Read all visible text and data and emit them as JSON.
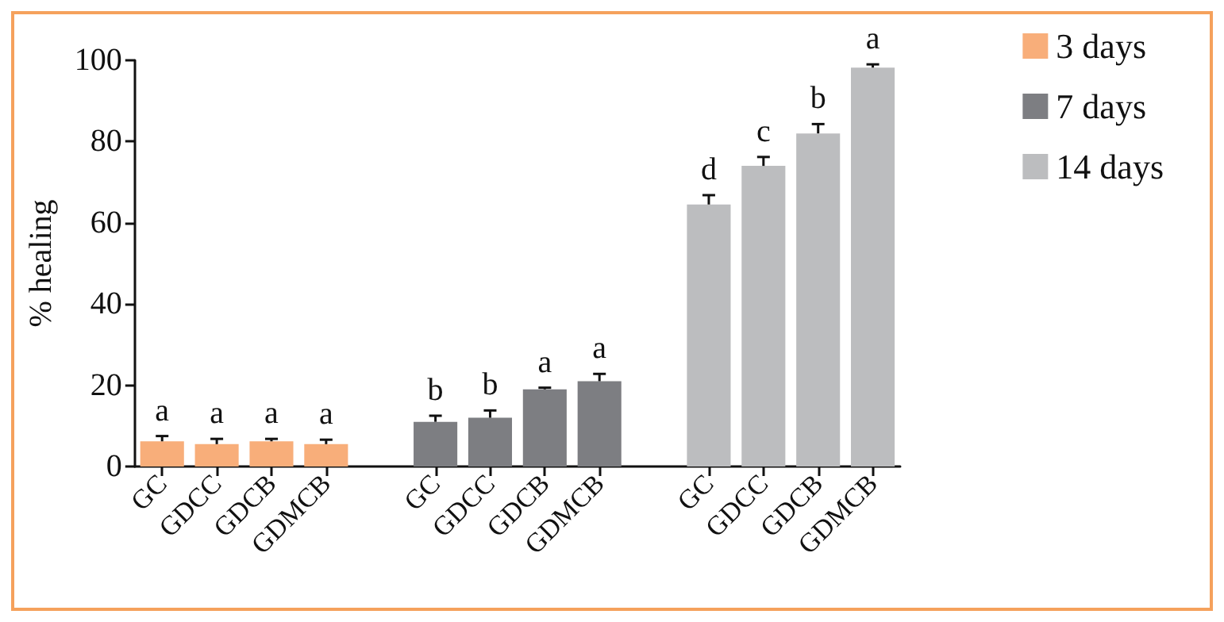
{
  "chart_data": {
    "type": "bar",
    "ylabel": "% healing",
    "categories": [
      "GC",
      "GDCC",
      "GDCB",
      "GDMCB",
      null,
      "GC",
      "GDCC",
      "GDCB",
      "GDMCB",
      null,
      "GC",
      "GDCC",
      "GDCB",
      "GDMCB"
    ],
    "series": [
      {
        "name": "3 days",
        "color": "#f8ae7a",
        "values": [
          6.2,
          5.5,
          6.2,
          5.5,
          null,
          null,
          null,
          null,
          null,
          null,
          null,
          null,
          null,
          null
        ],
        "errors": [
          [
            6.2,
            7.5
          ],
          [
            5.5,
            6.8
          ],
          [
            6.2,
            6.8
          ],
          [
            5.5,
            6.6
          ],
          null,
          null,
          null,
          null,
          null,
          null,
          null,
          null,
          null,
          null
        ],
        "value_labels": [
          "a",
          "a",
          "a",
          "a",
          null,
          null,
          null,
          null,
          null,
          null,
          null,
          null,
          null,
          null
        ]
      },
      {
        "name": "7 days",
        "color": "#7d7e82",
        "values": [
          null,
          null,
          null,
          null,
          null,
          11,
          12,
          19,
          21,
          null,
          null,
          null,
          null,
          null
        ],
        "errors": [
          null,
          null,
          null,
          null,
          null,
          [
            11,
            12.5
          ],
          [
            12,
            13.8
          ],
          [
            19,
            19.4
          ],
          [
            21,
            22.8
          ],
          null,
          null,
          null,
          null,
          null
        ],
        "value_labels": [
          null,
          null,
          null,
          null,
          null,
          "b",
          "b",
          "a",
          "a",
          null,
          null,
          null,
          null,
          null
        ]
      },
      {
        "name": "14 days",
        "color": "#bcbdbf",
        "values": [
          null,
          null,
          null,
          null,
          null,
          null,
          null,
          null,
          null,
          null,
          64.5,
          74,
          82,
          98.2
        ],
        "errors": [
          null,
          null,
          null,
          null,
          null,
          null,
          null,
          null,
          null,
          null,
          [
            64.5,
            66.8
          ],
          [
            74,
            76.2
          ],
          [
            82,
            84.3
          ],
          [
            98.2,
            99
          ]
        ],
        "value_labels": [
          null,
          null,
          null,
          null,
          null,
          null,
          null,
          null,
          null,
          null,
          "d",
          "c",
          "b",
          "a"
        ]
      }
    ],
    "ylim": [
      0,
      100
    ],
    "yticks": [
      0,
      20,
      40,
      60,
      80,
      100
    ],
    "grid": false,
    "legend": "top right"
  }
}
